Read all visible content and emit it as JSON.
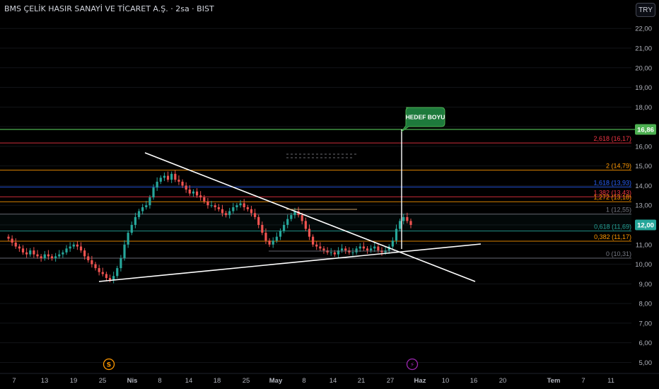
{
  "header": {
    "title": "BMS ÇELİK HASIR SANAYİ VE TİCARET A.Ş. · 2sa · BIST",
    "currency": "TRY"
  },
  "chart_data": {
    "type": "candlestick",
    "price_axis": {
      "ticks": [
        "22,00",
        "21,00",
        "20,00",
        "19,00",
        "18,00",
        "17,00",
        "16,00",
        "15,00",
        "14,00",
        "13,00",
        "12,00",
        "11,00",
        "10,00",
        "9,00",
        "8,00",
        "7,00",
        "6,00",
        "5,00"
      ],
      "ylim": [
        5,
        22.6
      ]
    },
    "time_axis": {
      "labels": [
        "7",
        "13",
        "19",
        "25",
        "Nis",
        "8",
        "14",
        "18",
        "25",
        "May",
        "8",
        "14",
        "21",
        "27",
        "Haz",
        "10",
        "16",
        "20",
        "Tem",
        "7",
        "11"
      ],
      "bold_labels": [
        "Nis",
        "May",
        "Haz",
        "Tem"
      ]
    },
    "price_badges": [
      {
        "value": "16,86",
        "price": 16.86,
        "color": "#4caf50"
      },
      {
        "value": "12,00",
        "price": 12.0,
        "color": "#26a69a"
      }
    ],
    "fib_levels": [
      {
        "label": "2,618 (16,17)",
        "price": 16.17,
        "color": "#f23645"
      },
      {
        "label": "2 (14,79)",
        "price": 14.79,
        "color": "#ff9800"
      },
      {
        "label": "1,618 (13,93)",
        "price": 13.93,
        "color": "#2962ff"
      },
      {
        "label": "1,382 (13,43)",
        "price": 13.43,
        "color": "#f23645"
      },
      {
        "label": "1,272 (13,18)",
        "price": 13.18,
        "color": "#ff9800"
      },
      {
        "label": "1 (12,55)",
        "price": 12.55,
        "color": "#787b86"
      },
      {
        "label": "0,618 (11,69)",
        "price": 11.69,
        "color": "#26a69a"
      },
      {
        "label": "0,382 (11,17)",
        "price": 11.17,
        "color": "#ff9800"
      },
      {
        "label": "0 (10,31)",
        "price": 10.31,
        "color": "#787b86"
      }
    ],
    "target_line": {
      "price": 16.86,
      "color": "#4caf50"
    },
    "callout": {
      "text": "HEDEF BOYU"
    },
    "event_markers": [
      {
        "symbol": "S",
        "name": "dividend",
        "color": "#ff9800"
      },
      {
        "symbol": "⚡",
        "name": "earnings",
        "color": "#9c27b0"
      }
    ],
    "up_color": "#26a69a",
    "down_color": "#ef5350",
    "series_close": [
      11.3,
      11.1,
      10.9,
      10.8,
      10.6,
      10.5,
      10.7,
      10.5,
      10.4,
      10.3,
      10.5,
      10.4,
      10.3,
      10.4,
      10.5,
      10.6,
      10.8,
      10.9,
      11.0,
      10.9,
      10.7,
      10.4,
      10.2,
      10.0,
      9.8,
      9.6,
      9.5,
      9.3,
      9.2,
      9.4,
      9.8,
      10.3,
      11.0,
      11.6,
      12.0,
      12.4,
      12.7,
      12.9,
      13.0,
      13.4,
      13.9,
      14.2,
      14.4,
      14.5,
      14.3,
      14.6,
      14.3,
      14.2,
      14.0,
      13.8,
      13.6,
      13.7,
      13.5,
      13.4,
      13.2,
      13.0,
      13.0,
      12.9,
      12.8,
      12.6,
      12.5,
      12.7,
      12.9,
      13.0,
      13.1,
      12.9,
      12.8,
      12.6,
      12.4,
      12.0,
      11.6,
      11.2,
      11.0,
      11.2,
      11.4,
      11.7,
      12.0,
      12.3,
      12.5,
      12.7,
      12.5,
      12.2,
      11.8,
      11.4,
      11.0,
      10.9,
      10.8,
      10.7,
      10.6,
      10.6,
      10.5,
      10.7,
      10.8,
      10.7,
      10.6,
      10.6,
      10.8,
      10.9,
      10.8,
      10.7,
      10.8,
      10.9,
      10.7,
      10.6,
      10.7,
      10.9,
      11.2,
      11.8,
      12.2,
      12.4,
      12.2,
      12.0
    ]
  }
}
